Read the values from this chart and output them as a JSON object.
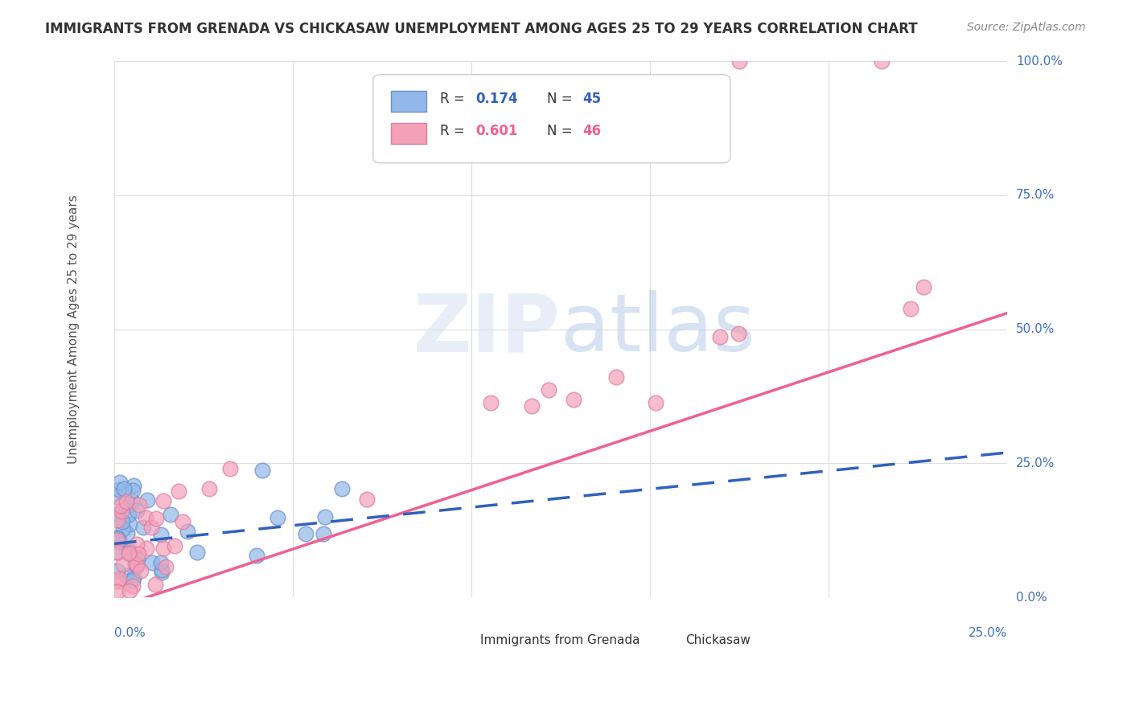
{
  "title": "IMMIGRANTS FROM GRENADA VS CHICKASAW UNEMPLOYMENT AMONG AGES 25 TO 29 YEARS CORRELATION CHART",
  "source": "Source: ZipAtlas.com",
  "ylabel_left": "Unemployment Among Ages 25 to 29 years",
  "ytick_labels": [
    "0.0%",
    "25.0%",
    "50.0%",
    "75.0%",
    "100.0%"
  ],
  "ytick_values": [
    0.0,
    0.25,
    0.5,
    0.75,
    1.0
  ],
  "xlim": [
    0.0,
    0.25
  ],
  "ylim": [
    0.0,
    1.0
  ],
  "series1_label": "Immigrants from Grenada",
  "series1_R": "0.174",
  "series1_N": "45",
  "series1_color": "#91b8e8",
  "series1_edge_color": "#7090d0",
  "series1_line_color": "#3060c0",
  "series2_label": "Chickasaw",
  "series2_R": "0.601",
  "series2_N": "46",
  "series2_color": "#f4a0b8",
  "series2_edge_color": "#e080a0",
  "series2_line_color": "#f06090",
  "background_color": "#ffffff",
  "grid_color": "#dddddd",
  "title_color": "#333333",
  "axis_label_color": "#4070c0",
  "pink_line_x": [
    0.0,
    0.25
  ],
  "pink_line_y": [
    -0.02,
    0.53
  ],
  "blue_line_x": [
    0.0,
    0.25
  ],
  "blue_line_y": [
    0.1,
    0.27
  ]
}
